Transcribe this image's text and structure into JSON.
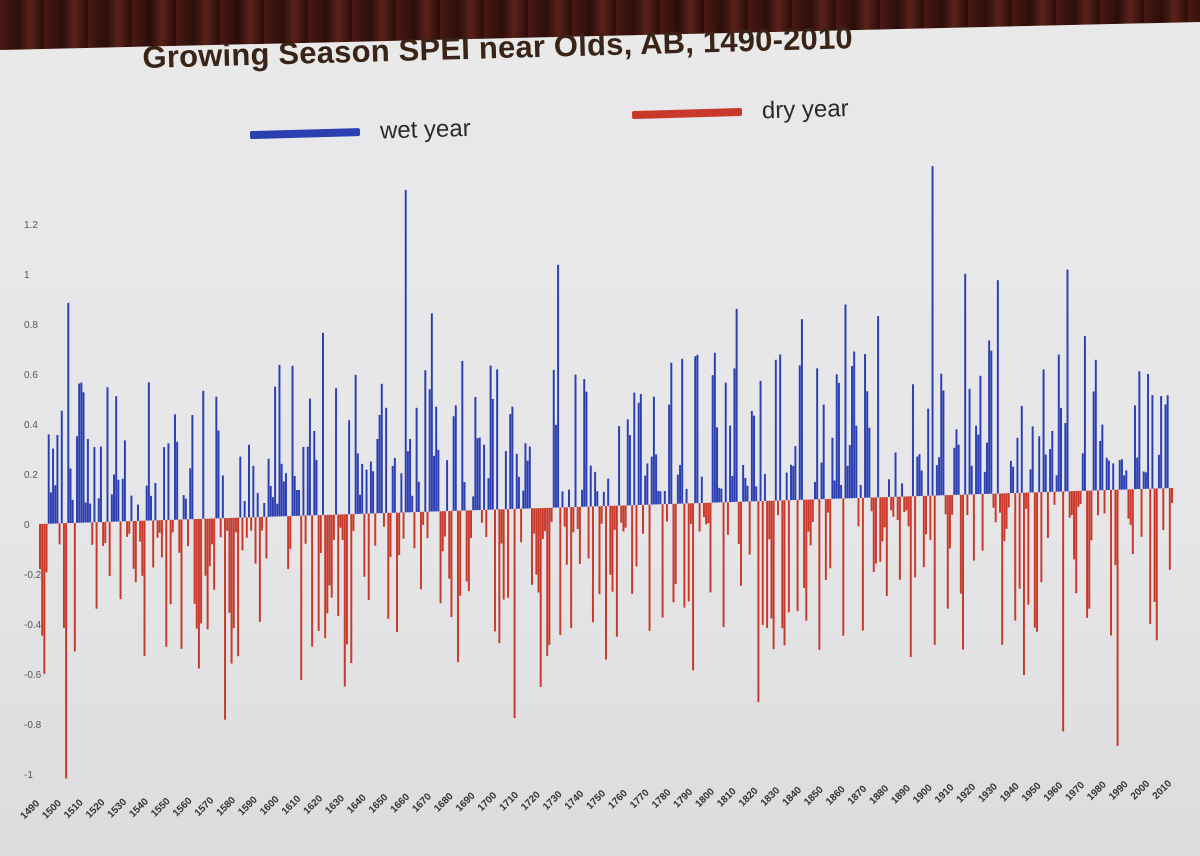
{
  "chart_data": {
    "type": "bar",
    "title": "Growing Season SPEI near Olds, AB, 1490-2010",
    "xlabel": "",
    "ylabel": "",
    "ylim": [
      -1,
      1.3
    ],
    "grid": false,
    "legend_position": "top",
    "legend": [
      {
        "name": "wet year",
        "color": "#2b3fb2"
      },
      {
        "name": "dry year",
        "color": "#c8392b"
      }
    ],
    "y_ticks": [
      "1.2",
      "1",
      "0.8",
      "0.6",
      "0.4",
      "0.2",
      "0",
      "-0.2",
      "-0.4",
      "-0.6",
      "-0.8",
      "-1"
    ],
    "x_ticks": [
      "1490",
      "1500",
      "1510",
      "1520",
      "1530",
      "1540",
      "1550",
      "1560",
      "1570",
      "1580",
      "1590",
      "1600",
      "1610",
      "1620",
      "1630",
      "1640",
      "1650",
      "1660",
      "1670",
      "1680",
      "1690",
      "1700",
      "1710",
      "1720",
      "1730",
      "1740",
      "1750",
      "1760",
      "1770",
      "1780",
      "1790",
      "1800",
      "1810",
      "1820",
      "1830",
      "1840",
      "1850",
      "1860",
      "1870",
      "1880",
      "1890",
      "1900",
      "1910",
      "1920",
      "1930",
      "1940",
      "1950",
      "1960",
      "1970",
      "1980",
      "1990",
      "2000",
      "2010"
    ],
    "series": [
      {
        "name": "SPEI",
        "x_start": 1490,
        "x_end": 2010,
        "notable_values": [
          {
            "x": 1492,
            "y": -0.6
          },
          {
            "x": 1496,
            "y": 0.3
          },
          {
            "x": 1500,
            "y": 0.45
          },
          {
            "x": 1502,
            "y": -1.02
          },
          {
            "x": 1503,
            "y": 0.88
          },
          {
            "x": 1510,
            "y": 0.52
          },
          {
            "x": 1525,
            "y": 0.5
          },
          {
            "x": 1540,
            "y": 0.55
          },
          {
            "x": 1575,
            "y": -0.8
          },
          {
            "x": 1600,
            "y": 0.6
          },
          {
            "x": 1610,
            "y": -0.65
          },
          {
            "x": 1620,
            "y": 0.72
          },
          {
            "x": 1630,
            "y": -0.68
          },
          {
            "x": 1658,
            "y": 1.27
          },
          {
            "x": 1670,
            "y": 0.78
          },
          {
            "x": 1700,
            "y": 0.55
          },
          {
            "x": 1708,
            "y": -0.82
          },
          {
            "x": 1720,
            "y": -0.7
          },
          {
            "x": 1728,
            "y": 0.95
          },
          {
            "x": 1750,
            "y": -0.6
          },
          {
            "x": 1780,
            "y": 0.55
          },
          {
            "x": 1790,
            "y": -0.65
          },
          {
            "x": 1810,
            "y": 0.75
          },
          {
            "x": 1820,
            "y": -0.78
          },
          {
            "x": 1840,
            "y": 0.7
          },
          {
            "x": 1860,
            "y": 0.75
          },
          {
            "x": 1875,
            "y": 0.7
          },
          {
            "x": 1890,
            "y": -0.62
          },
          {
            "x": 1900,
            "y": 1.27
          },
          {
            "x": 1915,
            "y": 0.85
          },
          {
            "x": 1930,
            "y": 0.82
          },
          {
            "x": 1942,
            "y": -0.7
          },
          {
            "x": 1960,
            "y": -0.92
          },
          {
            "x": 1962,
            "y": 0.85
          },
          {
            "x": 1975,
            "y": 0.5
          },
          {
            "x": 1985,
            "y": -0.98
          },
          {
            "x": 1995,
            "y": 0.45
          },
          {
            "x": 2003,
            "y": -0.58
          },
          {
            "x": 2007,
            "y": 0.32
          }
        ]
      }
    ]
  }
}
